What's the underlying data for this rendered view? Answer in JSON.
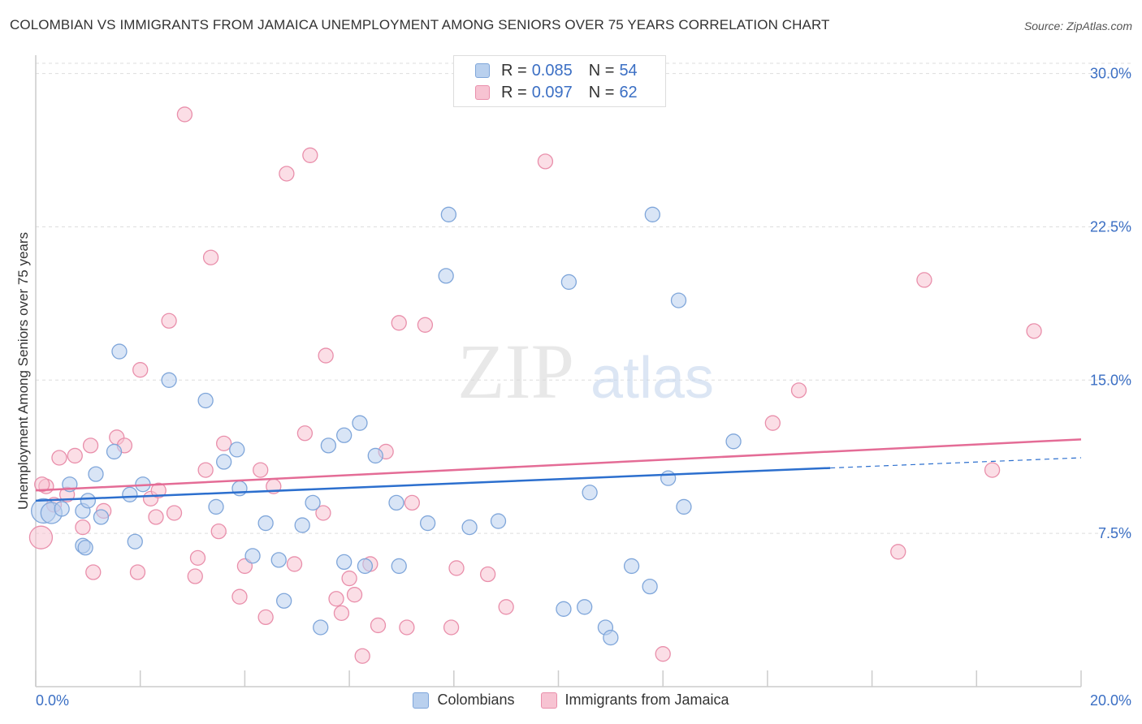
{
  "title": "COLOMBIAN VS IMMIGRANTS FROM JAMAICA UNEMPLOYMENT AMONG SENIORS OVER 75 YEARS CORRELATION CHART",
  "source": "Source: ZipAtlas.com",
  "watermark": {
    "zip": "ZIP",
    "atlas": "atlas"
  },
  "colors": {
    "blue_fill": "#b9d0ee",
    "blue_stroke": "#7fa6da",
    "blue_line": "#2c6fce",
    "pink_fill": "#f7c3d2",
    "pink_stroke": "#e98fab",
    "pink_line": "#e46c96",
    "axis_label": "#3b6fc4",
    "grid": "#dddddd"
  },
  "legend": {
    "rows": [
      {
        "r_label": "R =",
        "r_value": "0.085",
        "n_label": "N =",
        "n_value": "54"
      },
      {
        "r_label": "R =",
        "r_value": "0.097",
        "n_label": "N =",
        "n_value": "62"
      }
    ]
  },
  "bottom_legend": {
    "series1": "Colombians",
    "series2": "Immigrants from Jamaica"
  },
  "chart_data": {
    "type": "scatter",
    "title": "COLOMBIAN VS IMMIGRANTS FROM JAMAICA UNEMPLOYMENT AMONG SENIORS OVER 75 YEARS CORRELATION CHART",
    "xlabel": "",
    "ylabel": "Unemployment Among Seniors over 75 years",
    "xlim": [
      0,
      20
    ],
    "ylim": [
      0,
      30.5
    ],
    "x_tick_labels": [
      "0.0%",
      "20.0%"
    ],
    "y_ticks": [
      7.5,
      15.0,
      22.5,
      30.0
    ],
    "y_tick_labels": [
      "7.5%",
      "15.0%",
      "22.5%",
      "30.0%"
    ],
    "grid": true,
    "series": [
      {
        "name": "Colombians",
        "r": 0.085,
        "n": 54,
        "trend": {
          "x0": 0,
          "y0": 9.1,
          "x1": 15.2,
          "y1": 10.7,
          "dashed_to_x": 20,
          "dashed_to_y": 11.2
        },
        "points": [
          [
            0.15,
            8.6,
            15
          ],
          [
            0.3,
            8.5,
            13
          ],
          [
            0.5,
            8.7,
            9
          ],
          [
            0.9,
            8.6,
            9
          ],
          [
            1.0,
            9.1,
            9
          ],
          [
            0.65,
            9.9,
            9
          ],
          [
            0.9,
            6.9,
            9
          ],
          [
            0.95,
            6.8,
            9
          ],
          [
            1.25,
            8.3,
            9
          ],
          [
            1.15,
            10.4,
            9
          ],
          [
            1.5,
            11.5,
            9
          ],
          [
            1.6,
            16.4,
            9
          ],
          [
            1.8,
            9.4,
            9
          ],
          [
            1.9,
            7.1,
            9
          ],
          [
            2.55,
            15.0,
            9
          ],
          [
            3.25,
            14.0,
            9
          ],
          [
            2.05,
            9.9,
            9
          ],
          [
            3.45,
            8.8,
            9
          ],
          [
            3.6,
            11.0,
            9
          ],
          [
            3.85,
            11.6,
            9
          ],
          [
            3.9,
            9.7,
            9
          ],
          [
            4.15,
            6.4,
            9
          ],
          [
            4.4,
            8.0,
            9
          ],
          [
            4.65,
            6.2,
            9
          ],
          [
            4.75,
            4.2,
            9
          ],
          [
            5.1,
            7.9,
            9
          ],
          [
            5.3,
            9.0,
            9
          ],
          [
            5.45,
            2.9,
            9
          ],
          [
            5.6,
            11.8,
            9
          ],
          [
            5.9,
            12.3,
            9
          ],
          [
            5.9,
            6.1,
            9
          ],
          [
            6.3,
            5.9,
            9
          ],
          [
            6.2,
            12.9,
            9
          ],
          [
            6.5,
            11.3,
            9
          ],
          [
            6.9,
            9.0,
            9
          ],
          [
            6.95,
            5.9,
            9
          ],
          [
            7.5,
            8.0,
            9
          ],
          [
            7.85,
            20.1,
            9
          ],
          [
            7.9,
            23.1,
            9
          ],
          [
            8.3,
            7.8,
            9
          ],
          [
            8.85,
            8.1,
            9
          ],
          [
            10.1,
            3.8,
            9
          ],
          [
            10.2,
            19.8,
            9
          ],
          [
            10.5,
            3.9,
            9
          ],
          [
            10.6,
            9.5,
            9
          ],
          [
            10.9,
            2.9,
            9
          ],
          [
            11.0,
            2.4,
            9
          ],
          [
            11.4,
            5.9,
            9
          ],
          [
            11.75,
            4.9,
            9
          ],
          [
            11.8,
            23.1,
            9
          ],
          [
            12.1,
            10.2,
            9
          ],
          [
            12.3,
            18.9,
            9
          ],
          [
            12.4,
            8.8,
            9
          ],
          [
            13.35,
            12.0,
            9
          ]
        ]
      },
      {
        "name": "Immigrants from Jamaica",
        "r": 0.097,
        "n": 62,
        "trend": {
          "x0": 0,
          "y0": 9.6,
          "x1": 20,
          "y1": 12.1
        },
        "points": [
          [
            0.1,
            7.3,
            14
          ],
          [
            0.2,
            9.8,
            9
          ],
          [
            0.35,
            8.9,
            9
          ],
          [
            0.45,
            11.2,
            9
          ],
          [
            0.6,
            9.4,
            9
          ],
          [
            0.75,
            11.3,
            9
          ],
          [
            0.9,
            7.8,
            9
          ],
          [
            1.05,
            11.8,
            9
          ],
          [
            1.1,
            5.6,
            9
          ],
          [
            1.3,
            8.6,
            9
          ],
          [
            1.55,
            12.2,
            9
          ],
          [
            1.7,
            11.8,
            9
          ],
          [
            1.95,
            5.6,
            9
          ],
          [
            2.0,
            15.5,
            9
          ],
          [
            2.2,
            9.2,
            9
          ],
          [
            2.3,
            8.3,
            9
          ],
          [
            2.35,
            9.6,
            9
          ],
          [
            2.55,
            17.9,
            9
          ],
          [
            2.65,
            8.5,
            9
          ],
          [
            2.85,
            28.0,
            9
          ],
          [
            3.05,
            5.4,
            9
          ],
          [
            3.1,
            6.3,
            9
          ],
          [
            3.25,
            10.6,
            9
          ],
          [
            3.35,
            21.0,
            9
          ],
          [
            3.5,
            7.6,
            9
          ],
          [
            3.6,
            11.9,
            9
          ],
          [
            3.9,
            4.4,
            9
          ],
          [
            4.0,
            5.9,
            9
          ],
          [
            4.3,
            10.6,
            9
          ],
          [
            4.4,
            3.4,
            9
          ],
          [
            4.55,
            9.8,
            9
          ],
          [
            4.8,
            25.1,
            9
          ],
          [
            4.95,
            6.0,
            9
          ],
          [
            5.15,
            12.4,
            9
          ],
          [
            5.25,
            26.0,
            9
          ],
          [
            5.5,
            8.5,
            9
          ],
          [
            5.55,
            16.2,
            9
          ],
          [
            5.75,
            4.3,
            9
          ],
          [
            5.85,
            3.6,
            9
          ],
          [
            6.0,
            5.3,
            9
          ],
          [
            6.1,
            4.5,
            9
          ],
          [
            6.25,
            1.5,
            9
          ],
          [
            6.4,
            6.0,
            9
          ],
          [
            6.55,
            3.0,
            9
          ],
          [
            6.7,
            11.5,
            9
          ],
          [
            6.95,
            17.8,
            9
          ],
          [
            7.1,
            2.9,
            9
          ],
          [
            7.2,
            9.0,
            9
          ],
          [
            7.45,
            17.7,
            9
          ],
          [
            7.95,
            2.9,
            9
          ],
          [
            8.05,
            5.8,
            9
          ],
          [
            8.65,
            5.5,
            9
          ],
          [
            9.0,
            3.9,
            9
          ],
          [
            9.75,
            25.7,
            9
          ],
          [
            12.0,
            1.6,
            9
          ],
          [
            14.1,
            12.9,
            9
          ],
          [
            14.6,
            14.5,
            9
          ],
          [
            16.5,
            6.6,
            9
          ],
          [
            17.0,
            19.9,
            9
          ],
          [
            18.3,
            10.6,
            9
          ],
          [
            19.1,
            17.4,
            9
          ],
          [
            0.12,
            9.9,
            9
          ]
        ]
      }
    ]
  }
}
